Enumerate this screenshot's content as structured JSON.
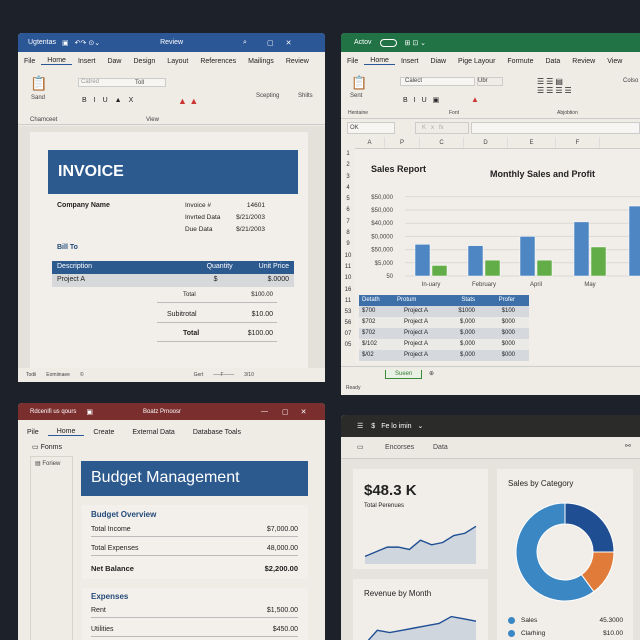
{
  "word": {
    "title_left": "Ugtentas",
    "title": "Review",
    "menu": [
      "File",
      "Home",
      "Insert",
      "Daw",
      "Design",
      "Layout",
      "References",
      "Mailings",
      "Review"
    ],
    "ribbon": {
      "paste": "Sand",
      "font": "Catred",
      "size": "Toll",
      "group_clipboard": "Chamceet",
      "group_view": "View",
      "styles": "Scepting",
      "shifts": "Shilts"
    },
    "invoice": {
      "title": "INVOICE",
      "company": "Company Name",
      "meta": [
        [
          "Invoice #",
          "14601"
        ],
        [
          "Invrted Data",
          "$/21/2003"
        ],
        [
          "Due Data",
          "$/21/2003"
        ]
      ],
      "bill_to": "Bill To",
      "headers": [
        "Description",
        "Quantity",
        "Unit Price"
      ],
      "row": [
        "Project A",
        "$",
        "$.0000"
      ],
      "totals": [
        [
          "Total",
          "$100.00"
        ],
        [
          "Subitrotal",
          "$10.00"
        ],
        [
          "Total",
          "$100.00"
        ]
      ]
    },
    "status": {
      "left": "Todii",
      "mid": "Eomiinaee",
      "right": "Gert",
      "zoom": "3/10"
    }
  },
  "excel": {
    "title": "Actov",
    "menu": [
      "File",
      "Home",
      "Insert",
      "Diaw",
      "Pige Layour",
      "Formute",
      "Data",
      "Review",
      "View"
    ],
    "ribbon": {
      "paste": "Sent",
      "font": "Calect",
      "size": "Ubr",
      "group_clip": "Hentaine",
      "group_font": "Font",
      "group_align": "Abjobtion",
      "cells": "Colso"
    },
    "name_box": "OK",
    "columns": [
      "A",
      "P",
      "C",
      "D",
      "E",
      "F"
    ],
    "rows": [
      "1",
      "2",
      "3",
      "4",
      "5",
      "6",
      "7",
      "8",
      "9",
      "10",
      "11",
      "10",
      "16",
      "11",
      "53",
      "56",
      "07",
      "05"
    ],
    "report_title": "Sales Report",
    "table": {
      "headers": [
        "Detath",
        "Protum",
        "Stats",
        "Profer"
      ],
      "rows": [
        [
          "$700",
          "Project A",
          "$1000",
          "$100"
        ],
        [
          "$702",
          "Project A",
          "$,000",
          "$000"
        ],
        [
          "$702",
          "Project A",
          "$,000",
          "$000"
        ],
        [
          "$/102",
          "Project A",
          "$,000",
          "$000"
        ],
        [
          "$/02",
          "Project A",
          "$,000",
          "$000"
        ]
      ]
    },
    "sheet_tab": "Sueen",
    "status": "Ready"
  },
  "access": {
    "title_left": "Rdcenifi us qours",
    "title": "Boatz Prnoosr",
    "menu": [
      "Pile",
      "Home",
      "Create",
      "External Data",
      "Database Toals"
    ],
    "nav_header": "Fonms",
    "nav_item": "Foriew",
    "form_title": "Budget Management",
    "overview_title": "Budget Overview",
    "overview": [
      [
        "Total Income",
        "$7,000.00"
      ],
      [
        "Total Expenses",
        "48,000.00"
      ],
      [
        "Net Balance",
        "$2,200.00"
      ]
    ],
    "expenses_title": "Expenses",
    "expenses": [
      [
        "Rent",
        "$1,500.00"
      ],
      [
        "Utilities",
        "$450.00"
      ]
    ]
  },
  "powerbi": {
    "title": "Fe lo imin",
    "tabs": [
      "Encorses",
      "Data"
    ],
    "kpi_value": "$48.3 K",
    "kpi_label": "Total Perenues",
    "revenue_title": "Revenue by Month",
    "category_title": "Sales by Category",
    "legend": [
      [
        "Sales",
        "45.3000"
      ],
      [
        "Clarhing",
        "$10.00"
      ]
    ]
  },
  "colors": {
    "word": "#2b5797",
    "excel": "#217346",
    "access": "#7b2e2e",
    "pbi_title": "#2b2b29",
    "bar_blue": "#4e86c4",
    "bar_green": "#62ad47",
    "donut_dark": "#1f4e93",
    "donut_light": "#3a87c4",
    "donut_orange": "#e07b39"
  },
  "chart_data": [
    {
      "type": "bar",
      "title": "Monthly Sales and Profit",
      "y_tick_labels": [
        "50",
        "$5,000",
        "$50,000",
        "$0,0000",
        "$40,000",
        "$50,000",
        "$50,000"
      ],
      "categories": [
        "In-uary",
        "February",
        "April",
        "May",
        ""
      ],
      "series": [
        {
          "values": [
            2.4,
            2.3,
            3.0,
            4.1,
            5.3
          ]
        },
        {
          "values": [
            0.8,
            1.2,
            1.2,
            2.2,
            null
          ]
        }
      ]
    },
    {
      "type": "area",
      "values": [
        1,
        2,
        3,
        3,
        2.5,
        4.5,
        3.5,
        4,
        5.5,
        6,
        7.5
      ]
    },
    {
      "type": "area",
      "values": [
        0,
        3,
        2.5,
        3,
        3.5,
        4,
        4.5,
        6,
        5.5,
        5
      ]
    },
    {
      "type": "pie",
      "title": "Sales by Category",
      "values": [
        25,
        15,
        60
      ]
    }
  ]
}
